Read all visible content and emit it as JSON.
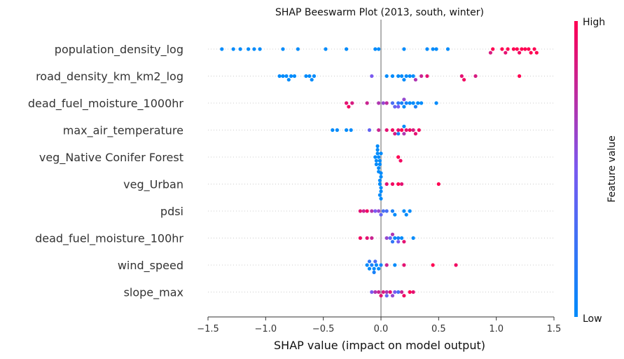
{
  "chart_data": {
    "type": "scatter",
    "subtype": "shap-beeswarm",
    "title": "SHAP Beeswarm Plot (2013, south, winter)",
    "xlabel": "SHAP value (impact on model output)",
    "ylabel": "",
    "xlim": [
      -1.5,
      1.5
    ],
    "x_ticks": [
      -1.5,
      -1.0,
      -0.5,
      0.0,
      0.5,
      1.0,
      1.5
    ],
    "x_tick_labels": [
      "−1.5",
      "−1.0",
      "−0.5",
      "0.0",
      "0.5",
      "1.0",
      "1.5"
    ],
    "colorbar": {
      "label": "Feature value",
      "high_label": "High",
      "low_label": "Low",
      "low_color": "#008bfb",
      "high_color": "#ff0052"
    },
    "grid": false,
    "features": [
      {
        "name": "population_density_log",
        "points": [
          [
            -1.38,
            0.0
          ],
          [
            -1.28,
            0.0
          ],
          [
            -1.22,
            0.0
          ],
          [
            -1.15,
            0.0
          ],
          [
            -1.1,
            0.0
          ],
          [
            -1.05,
            0.0
          ],
          [
            -0.85,
            0.0
          ],
          [
            -0.48,
            0.0
          ],
          [
            -0.3,
            0.0
          ],
          [
            -0.05,
            0.0
          ],
          [
            0.2,
            0.0
          ],
          [
            0.4,
            0.0
          ],
          [
            0.45,
            0.0
          ],
          [
            0.48,
            0.0
          ],
          [
            0.58,
            0.0
          ],
          [
            -0.72,
            0.0
          ],
          [
            -0.02,
            0.0
          ],
          [
            0.97,
            1.0
          ],
          [
            1.05,
            1.0
          ],
          [
            1.1,
            1.0
          ],
          [
            1.15,
            1.0
          ],
          [
            1.18,
            1.0
          ],
          [
            1.22,
            1.0
          ],
          [
            1.25,
            1.0
          ],
          [
            1.28,
            1.0
          ],
          [
            1.3,
            1.0
          ],
          [
            1.33,
            1.0
          ],
          [
            1.35,
            1.0
          ],
          [
            0.95,
            0.85
          ],
          [
            1.08,
            0.9
          ],
          [
            1.2,
            0.95
          ]
        ]
      },
      {
        "name": "road_density_km_km2_log",
        "points": [
          [
            -0.88,
            0.0
          ],
          [
            -0.85,
            0.0
          ],
          [
            -0.82,
            0.0
          ],
          [
            -0.8,
            0.0
          ],
          [
            -0.78,
            0.0
          ],
          [
            -0.75,
            0.0
          ],
          [
            -0.65,
            0.0
          ],
          [
            -0.62,
            0.0
          ],
          [
            -0.6,
            0.0
          ],
          [
            -0.58,
            0.0
          ],
          [
            0.05,
            0.0
          ],
          [
            0.1,
            0.0
          ],
          [
            0.15,
            0.0
          ],
          [
            0.18,
            0.0
          ],
          [
            0.2,
            0.0
          ],
          [
            0.22,
            0.0
          ],
          [
            0.25,
            0.0
          ],
          [
            0.28,
            0.0
          ],
          [
            -0.08,
            0.5
          ],
          [
            0.35,
            0.8
          ],
          [
            0.4,
            0.9
          ],
          [
            0.7,
            0.9
          ],
          [
            0.72,
            0.95
          ],
          [
            0.82,
            0.85
          ],
          [
            1.2,
            1.0
          ],
          [
            0.3,
            0.7
          ]
        ]
      },
      {
        "name": "dead_fuel_moisture_1000hr",
        "points": [
          [
            -0.3,
            0.9
          ],
          [
            -0.28,
            0.95
          ],
          [
            -0.25,
            0.85
          ],
          [
            -0.12,
            0.8
          ],
          [
            -0.02,
            0.7
          ],
          [
            0.02,
            0.6
          ],
          [
            0.05,
            0.75
          ],
          [
            0.1,
            0.3
          ],
          [
            0.12,
            0.4
          ],
          [
            0.15,
            0.2
          ],
          [
            0.18,
            0.1
          ],
          [
            0.2,
            0.0
          ],
          [
            0.22,
            0.1
          ],
          [
            0.25,
            0.0
          ],
          [
            0.28,
            0.0
          ],
          [
            0.3,
            0.1
          ],
          [
            0.32,
            0.0
          ],
          [
            0.35,
            0.0
          ],
          [
            0.48,
            0.0
          ],
          [
            0.15,
            0.5
          ],
          [
            0.2,
            0.6
          ]
        ]
      },
      {
        "name": "max_air_temperature",
        "points": [
          [
            -0.42,
            0.0
          ],
          [
            -0.38,
            0.0
          ],
          [
            -0.3,
            0.0
          ],
          [
            -0.26,
            0.0
          ],
          [
            -0.1,
            0.4
          ],
          [
            -0.02,
            0.8
          ],
          [
            0.05,
            0.9
          ],
          [
            0.1,
            0.95
          ],
          [
            0.12,
            0.85
          ],
          [
            0.15,
            0.9
          ],
          [
            0.18,
            1.0
          ],
          [
            0.2,
            0.7
          ],
          [
            0.22,
            0.9
          ],
          [
            0.25,
            0.95
          ],
          [
            0.28,
            0.85
          ],
          [
            0.3,
            0.9
          ],
          [
            0.33,
            0.95
          ],
          [
            0.2,
            0.0
          ],
          [
            0.15,
            0.1
          ]
        ]
      },
      {
        "name": "veg_Native Conifer Forest",
        "points": [
          [
            -0.05,
            0.0
          ],
          [
            -0.04,
            0.0
          ],
          [
            -0.03,
            0.0
          ],
          [
            -0.02,
            0.0
          ],
          [
            -0.01,
            0.0
          ],
          [
            0.0,
            0.0
          ],
          [
            -0.04,
            0.0
          ],
          [
            -0.03,
            0.0
          ],
          [
            -0.02,
            0.0
          ],
          [
            -0.01,
            0.0
          ],
          [
            -0.03,
            0.0
          ],
          [
            -0.02,
            0.0
          ],
          [
            0.15,
            1.0
          ],
          [
            0.17,
            0.95
          ]
        ]
      },
      {
        "name": "veg_Urban",
        "points": [
          [
            -0.01,
            0.0
          ],
          [
            0.0,
            0.0
          ],
          [
            -0.01,
            0.0
          ],
          [
            0.0,
            0.0
          ],
          [
            0.0,
            0.0
          ],
          [
            -0.01,
            0.0
          ],
          [
            0.0,
            0.0
          ],
          [
            0.0,
            0.0
          ],
          [
            0.05,
            0.9
          ],
          [
            0.1,
            0.95
          ],
          [
            0.15,
            1.0
          ],
          [
            0.18,
            0.9
          ],
          [
            0.5,
            1.0
          ]
        ]
      },
      {
        "name": "pdsi",
        "points": [
          [
            -0.18,
            0.9
          ],
          [
            -0.15,
            0.8
          ],
          [
            -0.12,
            0.95
          ],
          [
            -0.08,
            0.7
          ],
          [
            -0.05,
            0.5
          ],
          [
            -0.02,
            0.6
          ],
          [
            0.0,
            0.4
          ],
          [
            0.02,
            0.3
          ],
          [
            0.1,
            0.1
          ],
          [
            0.12,
            0.0
          ],
          [
            0.2,
            0.0
          ],
          [
            0.22,
            0.0
          ],
          [
            0.25,
            0.0
          ],
          [
            0.05,
            0.3
          ]
        ]
      },
      {
        "name": "dead_fuel_moisture_100hr",
        "points": [
          [
            -0.18,
            0.95
          ],
          [
            -0.12,
            0.9
          ],
          [
            -0.08,
            0.8
          ],
          [
            0.05,
            0.6
          ],
          [
            0.08,
            0.4
          ],
          [
            0.1,
            0.2
          ],
          [
            0.12,
            0.0
          ],
          [
            0.15,
            0.1
          ],
          [
            0.18,
            0.0
          ],
          [
            0.2,
            0.9
          ],
          [
            0.28,
            0.0
          ],
          [
            0.1,
            0.7
          ],
          [
            0.15,
            0.5
          ]
        ]
      },
      {
        "name": "wind_speed",
        "points": [
          [
            -0.12,
            0.0
          ],
          [
            -0.1,
            0.0
          ],
          [
            -0.08,
            0.1
          ],
          [
            -0.06,
            0.0
          ],
          [
            -0.04,
            0.0
          ],
          [
            -0.02,
            0.0
          ],
          [
            0.0,
            0.1
          ],
          [
            -0.05,
            0.3
          ],
          [
            0.05,
            0.8
          ],
          [
            0.12,
            0.0
          ],
          [
            0.2,
            0.9
          ],
          [
            0.45,
            1.0
          ],
          [
            0.65,
            0.95
          ],
          [
            -0.1,
            0.2
          ],
          [
            -0.06,
            0.1
          ]
        ]
      },
      {
        "name": "slope_max",
        "points": [
          [
            -0.08,
            0.5
          ],
          [
            -0.05,
            0.7
          ],
          [
            -0.02,
            0.8
          ],
          [
            0.0,
            0.9
          ],
          [
            0.02,
            0.85
          ],
          [
            0.05,
            0.7
          ],
          [
            0.08,
            0.9
          ],
          [
            0.1,
            0.6
          ],
          [
            0.12,
            0.5
          ],
          [
            0.15,
            0.3
          ],
          [
            0.18,
            0.8
          ],
          [
            0.2,
            0.95
          ],
          [
            0.25,
            1.0
          ],
          [
            0.28,
            0.9
          ],
          [
            0.05,
            0.4
          ]
        ]
      }
    ]
  }
}
